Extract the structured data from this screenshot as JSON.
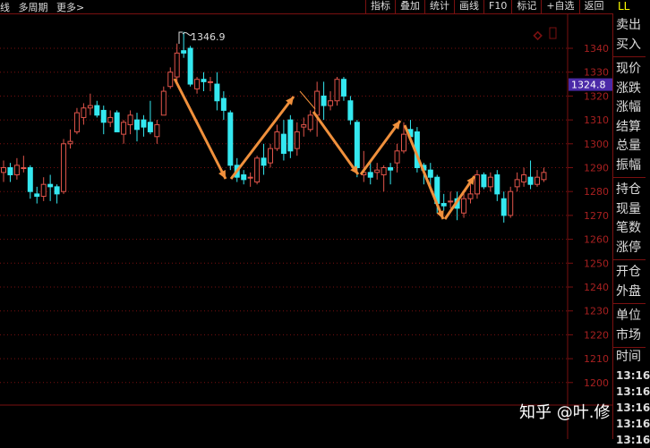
{
  "topbar": {
    "left": [
      "线",
      "多周期",
      "更多>"
    ],
    "buttons": [
      "指标",
      "叠加",
      "统计",
      "画线",
      "F10",
      "标记",
      "+自选",
      "返回"
    ],
    "corner": "LL"
  },
  "panel": {
    "groups": [
      [
        "卖出",
        "买入"
      ],
      [
        "现价",
        "涨跌",
        "涨幅",
        "结算",
        "总量",
        "振幅"
      ],
      [
        "持仓",
        "现量",
        "笔数",
        "涨停"
      ],
      [
        "开仓",
        "外盘"
      ],
      [
        "单位",
        "市场"
      ]
    ],
    "time_label": "时间",
    "times": [
      "13:16",
      "13:16",
      "13:16",
      "13:16",
      "13:16"
    ]
  },
  "watermark": "知乎 @叶.修",
  "colors": {
    "up": "#e0544a",
    "down": "#34e8f0",
    "grid": "#7a1010",
    "axis_text": "#a82020",
    "arrow": "#f0903c",
    "price_tag": "#4b2aa8"
  },
  "chart_data": {
    "type": "candlestick",
    "ylim": [
      1195,
      1352
    ],
    "yticks": [
      1340,
      1330,
      1320,
      1310,
      1300,
      1290,
      1280,
      1270,
      1260,
      1250,
      1240,
      1230,
      1220,
      1210,
      1200
    ],
    "high_label": "1346.9",
    "current_price": "1324.8",
    "candles_ochl": [
      [
        1288,
        1290,
        1293,
        1284
      ],
      [
        1290,
        1287,
        1292,
        1284
      ],
      [
        1287,
        1291,
        1294,
        1285
      ],
      [
        1290,
        1290,
        1295,
        1288
      ],
      [
        1290,
        1280,
        1291,
        1277
      ],
      [
        1279,
        1278,
        1282,
        1275
      ],
      [
        1278,
        1283,
        1286,
        1276
      ],
      [
        1283,
        1282,
        1287,
        1276
      ],
      [
        1282,
        1279,
        1283,
        1275
      ],
      [
        1280,
        1300,
        1302,
        1279
      ],
      [
        1300,
        1301,
        1306,
        1298
      ],
      [
        1305,
        1313,
        1315,
        1304
      ],
      [
        1311,
        1315,
        1317,
        1308
      ],
      [
        1315,
        1316,
        1321,
        1312
      ],
      [
        1316,
        1312,
        1318,
        1311
      ],
      [
        1314,
        1309,
        1316,
        1304
      ],
      [
        1309,
        1311,
        1314,
        1307
      ],
      [
        1313,
        1305,
        1314,
        1305
      ],
      [
        1304,
        1309,
        1310,
        1300
      ],
      [
        1308,
        1312,
        1314,
        1304
      ],
      [
        1310,
        1306,
        1313,
        1301
      ],
      [
        1310,
        1307,
        1312,
        1303
      ],
      [
        1309,
        1305,
        1318,
        1304
      ],
      [
        1303,
        1308,
        1310,
        1300
      ],
      [
        1312,
        1322,
        1324,
        1312
      ],
      [
        1324,
        1330,
        1332,
        1323
      ],
      [
        1328,
        1338,
        1342,
        1326
      ],
      [
        1339,
        1338,
        1346.9,
        1336
      ],
      [
        1340,
        1325,
        1341,
        1324
      ],
      [
        1323,
        1327,
        1328,
        1321
      ],
      [
        1327,
        1326,
        1330,
        1322
      ],
      [
        1326,
        1326,
        1328,
        1322
      ],
      [
        1325,
        1318,
        1330,
        1314
      ],
      [
        1319,
        1314,
        1322,
        1310
      ],
      [
        1313,
        1291,
        1314,
        1289
      ],
      [
        1291,
        1286,
        1294,
        1284
      ],
      [
        1287,
        1285,
        1289,
        1283
      ],
      [
        1286,
        1286,
        1288,
        1282
      ],
      [
        1284,
        1294,
        1295,
        1283
      ],
      [
        1294,
        1291,
        1300,
        1287
      ],
      [
        1292,
        1298,
        1300,
        1290
      ],
      [
        1298,
        1305,
        1308,
        1297
      ],
      [
        1304,
        1296,
        1310,
        1293
      ],
      [
        1310,
        1297,
        1312,
        1294
      ],
      [
        1298,
        1305,
        1309,
        1295
      ],
      [
        1307,
        1308,
        1311,
        1303
      ],
      [
        1306,
        1312,
        1314,
        1305
      ],
      [
        1312,
        1322,
        1326,
        1303
      ],
      [
        1320,
        1316,
        1326,
        1310
      ],
      [
        1316,
        1318,
        1322,
        1314
      ],
      [
        1318,
        1327,
        1328,
        1316
      ],
      [
        1327,
        1320,
        1328,
        1318
      ],
      [
        1318,
        1310,
        1320,
        1308
      ],
      [
        1309,
        1290,
        1310,
        1286
      ],
      [
        1287,
        1288,
        1297,
        1284
      ],
      [
        1288,
        1286,
        1292,
        1283
      ],
      [
        1288,
        1289,
        1292,
        1285
      ],
      [
        1287,
        1290,
        1291,
        1280
      ],
      [
        1290,
        1289,
        1292,
        1283
      ],
      [
        1292,
        1297,
        1300,
        1288
      ],
      [
        1297,
        1304,
        1309,
        1296
      ],
      [
        1306,
        1303,
        1310,
        1301
      ],
      [
        1305,
        1290,
        1307,
        1288
      ],
      [
        1291,
        1289,
        1292,
        1283
      ],
      [
        1289,
        1286,
        1292,
        1282
      ],
      [
        1286,
        1275,
        1287,
        1271
      ],
      [
        1275,
        1274,
        1279,
        1272
      ],
      [
        1276,
        1276,
        1280,
        1273
      ],
      [
        1277,
        1273,
        1280,
        1268
      ],
      [
        1271,
        1277,
        1280,
        1269
      ],
      [
        1277,
        1279,
        1283,
        1275
      ],
      [
        1279,
        1287,
        1289,
        1277
      ],
      [
        1287,
        1282,
        1288,
        1281
      ],
      [
        1282,
        1286,
        1288,
        1280
      ],
      [
        1287,
        1279,
        1289,
        1276
      ],
      [
        1277,
        1270,
        1280,
        1267
      ],
      [
        1270,
        1280,
        1282,
        1269
      ],
      [
        1282,
        1285,
        1288,
        1280
      ],
      [
        1284,
        1287,
        1290,
        1282
      ],
      [
        1286,
        1283,
        1293,
        1281
      ],
      [
        1283,
        1286,
        1289,
        1282
      ],
      [
        1285,
        1288,
        1290,
        1284
      ]
    ]
  }
}
